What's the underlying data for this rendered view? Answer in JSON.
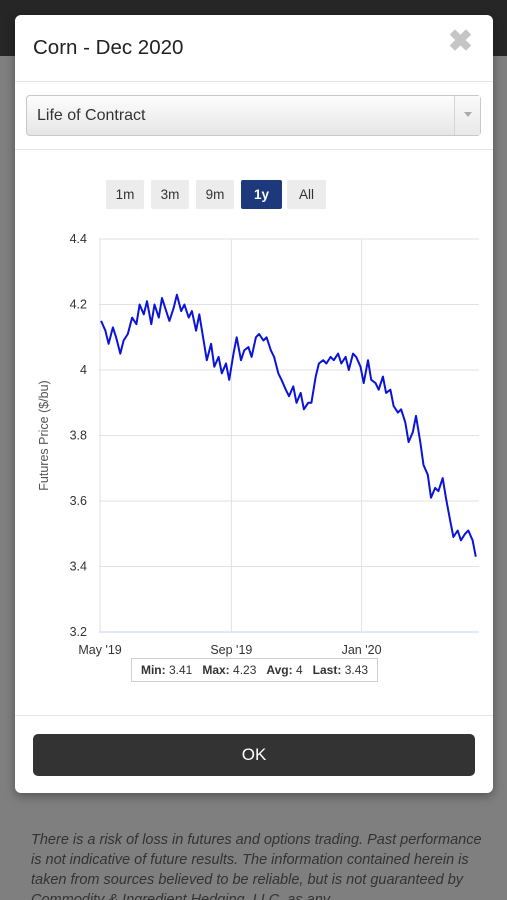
{
  "modal": {
    "title": "Corn - Dec 2020",
    "close_label": "✖",
    "range_select": {
      "value": "Life of Contract"
    },
    "periods": [
      {
        "label": "1m",
        "active": false
      },
      {
        "label": "3m",
        "active": false
      },
      {
        "label": "9m",
        "active": false
      },
      {
        "label": "1y",
        "active": true
      },
      {
        "label": "All",
        "active": false
      }
    ],
    "stats": {
      "min_label": "Min:",
      "min": "3.41",
      "max_label": "Max:",
      "max": "4.23",
      "avg_label": "Avg:",
      "avg": "4",
      "last_label": "Last:",
      "last": "3.43"
    },
    "ok_label": "OK"
  },
  "disclaimer": "There is a risk of loss in futures and options trading. Past performance is not indicative of future results. The information contained herein is taken from sources believed to be reliable, but is not guaranteed by Commodity & Ingredient Hedging, LLC, as any",
  "colors": {
    "line": "#0a14d8",
    "active_button": "#1c3a7b",
    "ok_button": "#333333",
    "grid": "#e2e2e2"
  },
  "chart_data": {
    "type": "line",
    "ylabel": "Futures Price ($/bu)",
    "xlabel": "",
    "ylim": [
      3.2,
      4.4
    ],
    "yticks": [
      "3.2",
      "3.4",
      "3.6",
      "3.8",
      "4",
      "4.2",
      "4.4"
    ],
    "xticks": [
      "May '19",
      "Sep '19",
      "Jan '20"
    ],
    "x_range": [
      "2019-04-30",
      "2020-04-20"
    ],
    "grid": true,
    "series": [
      {
        "name": "",
        "x": [
          "2019-05-02",
          "2019-05-06",
          "2019-05-09",
          "2019-05-13",
          "2019-05-16",
          "2019-05-20",
          "2019-05-23",
          "2019-05-27",
          "2019-05-31",
          "2019-06-04",
          "2019-06-07",
          "2019-06-11",
          "2019-06-14",
          "2019-06-18",
          "2019-06-21",
          "2019-06-25",
          "2019-06-28",
          "2019-07-02",
          "2019-07-05",
          "2019-07-09",
          "2019-07-12",
          "2019-07-16",
          "2019-07-19",
          "2019-07-23",
          "2019-07-26",
          "2019-07-30",
          "2019-08-02",
          "2019-08-06",
          "2019-08-09",
          "2019-08-13",
          "2019-08-16",
          "2019-08-20",
          "2019-08-23",
          "2019-08-27",
          "2019-08-30",
          "2019-09-03",
          "2019-09-06",
          "2019-09-10",
          "2019-09-13",
          "2019-09-17",
          "2019-09-20",
          "2019-09-24",
          "2019-09-27",
          "2019-10-01",
          "2019-10-04",
          "2019-10-08",
          "2019-10-11",
          "2019-10-15",
          "2019-10-18",
          "2019-10-22",
          "2019-10-25",
          "2019-10-29",
          "2019-11-01",
          "2019-11-05",
          "2019-11-08",
          "2019-11-12",
          "2019-11-15",
          "2019-11-19",
          "2019-11-22",
          "2019-11-26",
          "2019-11-29",
          "2019-12-03",
          "2019-12-06",
          "2019-12-10",
          "2019-12-13",
          "2019-12-17",
          "2019-12-20",
          "2019-12-24",
          "2019-12-27",
          "2019-12-31",
          "2020-01-03",
          "2020-01-07",
          "2020-01-10",
          "2020-01-14",
          "2020-01-17",
          "2020-01-21",
          "2020-01-24",
          "2020-01-28",
          "2020-01-31",
          "2020-02-04",
          "2020-02-07",
          "2020-02-11",
          "2020-02-14",
          "2020-02-18",
          "2020-02-21",
          "2020-02-25",
          "2020-02-28",
          "2020-03-03",
          "2020-03-06",
          "2020-03-10",
          "2020-03-13",
          "2020-03-17",
          "2020-03-20",
          "2020-03-24",
          "2020-03-27",
          "2020-03-31",
          "2020-04-03",
          "2020-04-07",
          "2020-04-10",
          "2020-04-14",
          "2020-04-17"
        ],
        "values": [
          4.15,
          4.12,
          4.08,
          4.13,
          4.1,
          4.05,
          4.09,
          4.11,
          4.16,
          4.14,
          4.2,
          4.17,
          4.21,
          4.14,
          4.2,
          4.16,
          4.22,
          4.18,
          4.15,
          4.19,
          4.23,
          4.18,
          4.2,
          4.16,
          4.18,
          4.12,
          4.17,
          4.09,
          4.03,
          4.08,
          4.01,
          4.04,
          3.99,
          4.02,
          3.97,
          4.05,
          4.1,
          4.03,
          4.06,
          4.07,
          4.04,
          4.1,
          4.11,
          4.09,
          4.1,
          4.06,
          4.04,
          3.99,
          3.97,
          3.94,
          3.92,
          3.95,
          3.9,
          3.93,
          3.88,
          3.9,
          3.9,
          3.98,
          4.02,
          4.03,
          4.02,
          4.04,
          4.03,
          4.05,
          4.02,
          4.04,
          4.0,
          4.05,
          4.04,
          4.01,
          3.96,
          4.03,
          3.97,
          3.96,
          3.94,
          3.98,
          3.93,
          3.94,
          3.89,
          3.87,
          3.88,
          3.84,
          3.78,
          3.81,
          3.86,
          3.78,
          3.71,
          3.68,
          3.61,
          3.64,
          3.63,
          3.67,
          3.61,
          3.54,
          3.49,
          3.51,
          3.48,
          3.5,
          3.51,
          3.48,
          3.43
        ]
      }
    ]
  }
}
